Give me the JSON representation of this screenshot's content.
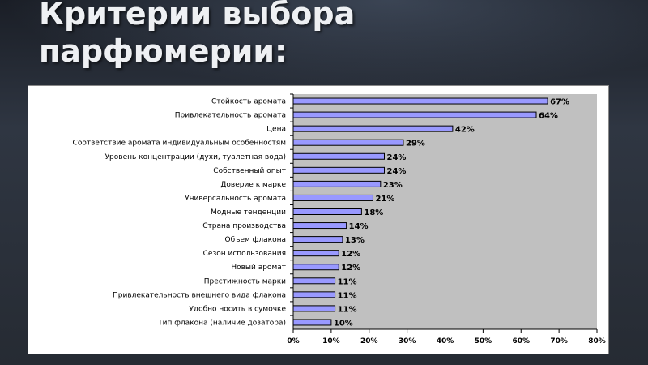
{
  "slide": {
    "title_line1": "Критерии выбора",
    "title_line2": "парфюмерии:"
  },
  "chart_data": {
    "type": "bar",
    "orientation": "horizontal",
    "categories": [
      "Стойкость аромата",
      "Привлекательность аромата",
      "Цена",
      "Соответствие аромата индивидуальным особенностям",
      "Уровень концентрации (духи, туалетная вода)",
      "Собственный опыт",
      "Доверие к марке",
      "Универсальность аромата",
      "Модные тенденции",
      "Страна производства",
      "Объем флакона",
      "Сезон использования",
      "Новый аромат",
      "Престижность марки",
      "Привлекательность внешнего вида флакона",
      "Удобно носить в сумочке",
      "Тип флакона (наличие дозатора)"
    ],
    "values": [
      67,
      64,
      42,
      29,
      24,
      24,
      23,
      21,
      18,
      14,
      13,
      12,
      12,
      11,
      11,
      11,
      10
    ],
    "value_labels": [
      "67%",
      "64%",
      "42%",
      "29%",
      "24%",
      "24%",
      "23%",
      "21%",
      "18%",
      "14%",
      "13%",
      "12%",
      "12%",
      "11%",
      "11%",
      "11%",
      "10%"
    ],
    "x_ticks": [
      "0%",
      "10%",
      "20%",
      "30%",
      "40%",
      "50%",
      "60%",
      "70%",
      "80%"
    ],
    "xlim": [
      0,
      80
    ],
    "grid": false,
    "colors": {
      "bar_fill": "#9999ff",
      "bar_stroke": "#000000",
      "plot_background": "#c0c0c0"
    }
  }
}
